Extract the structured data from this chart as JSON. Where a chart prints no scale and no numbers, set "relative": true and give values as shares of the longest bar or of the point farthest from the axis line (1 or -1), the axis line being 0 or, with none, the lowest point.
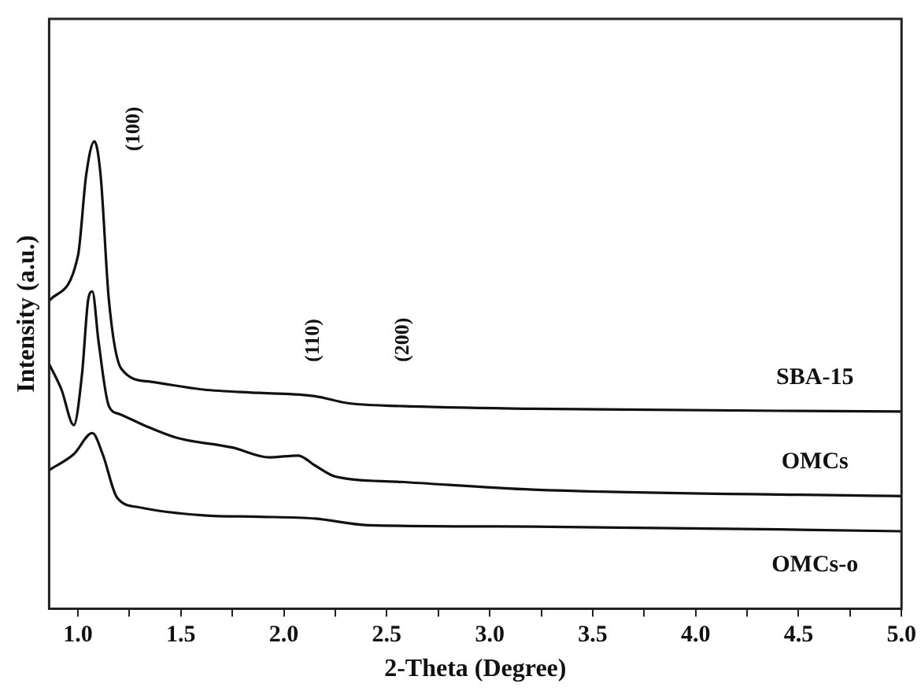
{
  "chart_data": {
    "type": "line",
    "relative": true,
    "xlabel": "2-Theta (Degree)",
    "ylabel": "Intensity (a.u.)",
    "xlim": [
      0.86,
      5.0
    ],
    "xticks": [
      {
        "value": 1,
        "label": "1.0"
      },
      {
        "value": 1.25,
        "label": null
      },
      {
        "value": 1.5,
        "label": "1.5"
      },
      {
        "value": 1.75,
        "label": null
      },
      {
        "value": 2,
        "label": "2.0"
      },
      {
        "value": 2.25,
        "label": null
      },
      {
        "value": 2.5,
        "label": "2.5"
      },
      {
        "value": 2.75,
        "label": null
      },
      {
        "value": 3,
        "label": "3.0"
      },
      {
        "value": 3.25,
        "label": null
      },
      {
        "value": 3.5,
        "label": "3.5"
      },
      {
        "value": 3.75,
        "label": null
      },
      {
        "value": 4,
        "label": "4.0"
      },
      {
        "value": 4.25,
        "label": null
      },
      {
        "value": 4.5,
        "label": "4.5"
      },
      {
        "value": 4.75,
        "label": null
      },
      {
        "value": 5,
        "label": "5.0"
      }
    ],
    "tick_labels": "x",
    "grid": false,
    "legend": false,
    "marker": "none",
    "line_style": "solid",
    "series": [
      {
        "name": "SBA-15",
        "color": "#111111",
        "x": [
          0.86,
          1.0,
          1.04,
          1.08,
          1.11,
          1.15,
          1.21,
          1.35,
          1.61,
          1.88,
          2.15,
          2.31,
          2.55,
          3.21,
          5.0
        ],
        "values": [
          0.659,
          0.755,
          0.928,
          1.0,
          0.928,
          0.662,
          0.514,
          0.486,
          0.469,
          0.462,
          0.455,
          0.44,
          0.434,
          0.428,
          0.422
        ]
      },
      {
        "name": "OMCs",
        "color": "#111111",
        "x": [
          0.86,
          0.92,
          0.98,
          1.02,
          1.05,
          1.07,
          1.1,
          1.15,
          1.2,
          1.32,
          1.48,
          1.75,
          1.93,
          2.07,
          2.15,
          2.25,
          2.55,
          3.21,
          5.0
        ],
        "values": [
          0.524,
          0.469,
          0.393,
          0.503,
          0.662,
          0.679,
          0.572,
          0.434,
          0.417,
          0.393,
          0.366,
          0.345,
          0.324,
          0.328,
          0.307,
          0.283,
          0.272,
          0.255,
          0.241
        ]
      },
      {
        "name": "OMCs-o",
        "color": "#111111",
        "x": [
          0.86,
          0.98,
          1.07,
          1.12,
          1.19,
          1.3,
          1.61,
          1.88,
          2.15,
          2.41,
          3.21,
          5.0
        ],
        "values": [
          0.297,
          0.331,
          0.376,
          0.331,
          0.238,
          0.217,
          0.2,
          0.197,
          0.193,
          0.179,
          0.176,
          0.166
        ]
      }
    ],
    "annotations": [
      "(100)",
      "(110)",
      "(200)"
    ]
  }
}
